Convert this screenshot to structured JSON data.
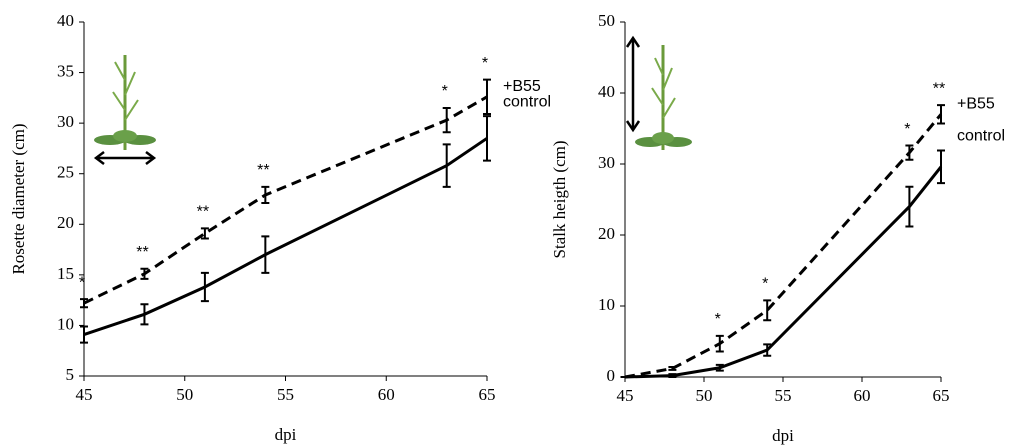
{
  "chart_data": [
    {
      "type": "line",
      "xlabel": "dpi",
      "ylabel": "Rosette diameter (cm)",
      "x": [
        45,
        48,
        51,
        54,
        63,
        65
      ],
      "xlim": [
        45,
        65
      ],
      "xticks": [
        45,
        50,
        55,
        60,
        65
      ],
      "ylim": [
        5,
        40
      ],
      "yticks": [
        5,
        10,
        15,
        20,
        25,
        30,
        35,
        40
      ],
      "series": [
        {
          "name": "+B55",
          "color": "#000000",
          "line_style": "dashed",
          "values": [
            12.2,
            15.1,
            19.1,
            22.9,
            30.3,
            32.6
          ],
          "errors": [
            0.4,
            0.5,
            0.5,
            0.8,
            1.2,
            1.7
          ]
        },
        {
          "name": "control",
          "color": "#000000",
          "line_style": "solid",
          "values": [
            9.1,
            11.1,
            13.8,
            17.0,
            25.8,
            28.5
          ],
          "errors": [
            0.8,
            1.0,
            1.4,
            1.8,
            2.1,
            2.2
          ]
        }
      ],
      "significance": [
        "*",
        "**",
        "**",
        "**",
        "*",
        "*"
      ]
    },
    {
      "type": "line",
      "xlabel": "dpi",
      "ylabel": "Stalk heigth (cm)",
      "x": [
        45,
        48,
        51,
        54,
        63,
        65
      ],
      "xlim": [
        45,
        65
      ],
      "xticks": [
        45,
        50,
        55,
        60,
        65
      ],
      "ylim": [
        0,
        50
      ],
      "yticks": [
        0,
        10,
        20,
        30,
        40,
        50
      ],
      "series": [
        {
          "name": "+B55",
          "color": "#000000",
          "line_style": "dashed",
          "values": [
            0,
            1.2,
            4.7,
            9.4,
            31.6,
            37.0
          ],
          "errors": [
            0,
            0.2,
            1.1,
            1.4,
            1.0,
            1.3
          ]
        },
        {
          "name": "control",
          "color": "#000000",
          "line_style": "solid",
          "values": [
            0,
            0.2,
            1.3,
            3.8,
            24.0,
            29.6
          ],
          "errors": [
            0,
            0.2,
            0.4,
            0.8,
            2.8,
            2.3
          ]
        }
      ],
      "significance": [
        null,
        null,
        "*",
        "*",
        "*",
        "**"
      ]
    }
  ]
}
